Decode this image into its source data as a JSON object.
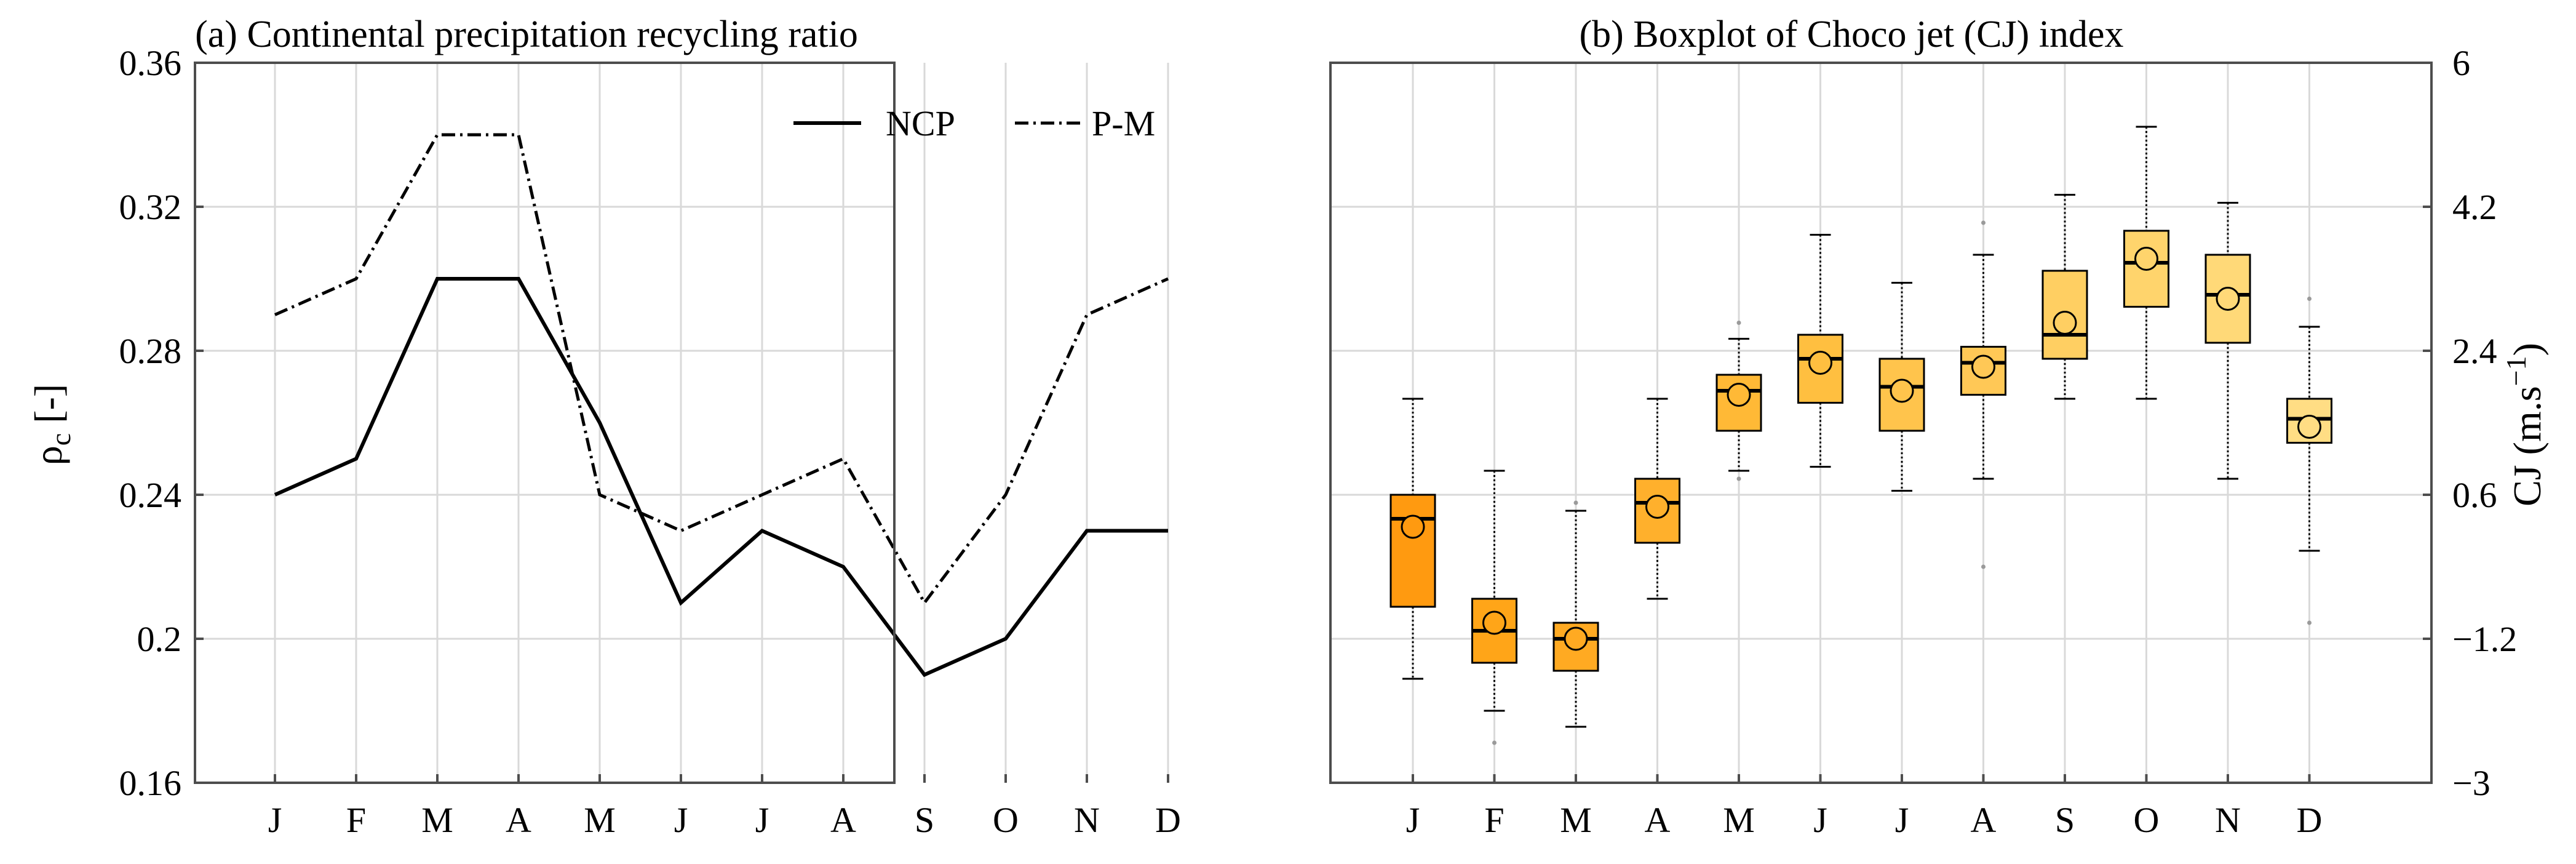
{
  "chart_data": [
    {
      "type": "line",
      "title": "(a) Continental precipitation recycling ratio",
      "ylabel_main": "ρ",
      "ylabel_sub": "c",
      "ylabel_tail": " [-]",
      "xlabel": "",
      "categories": [
        "J",
        "F",
        "M",
        "A",
        "M",
        "J",
        "J",
        "A",
        "S",
        "O",
        "N",
        "D"
      ],
      "ylim": [
        0.16,
        0.36
      ],
      "yticks": [
        0.16,
        0.2,
        0.24,
        0.28,
        0.32,
        0.36
      ],
      "ytick_labels": [
        "0.16",
        "0.2",
        "0.24",
        "0.28",
        "0.32",
        "0.36"
      ],
      "grid": true,
      "legend": "top-right",
      "series": [
        {
          "name": "NCP",
          "style": "solid",
          "values": [
            0.24,
            0.25,
            0.3,
            0.3,
            0.26,
            0.21,
            0.23,
            0.22,
            0.19,
            0.2,
            0.23,
            0.23
          ]
        },
        {
          "name": "P-M",
          "style": "dashdot",
          "values": [
            0.29,
            0.3,
            0.34,
            0.34,
            0.24,
            0.23,
            0.24,
            0.25,
            0.21,
            0.24,
            0.29,
            0.3
          ]
        }
      ]
    },
    {
      "type": "boxplot",
      "title": "(b) Boxplot of Choco jet (CJ) index",
      "ylabel_main": "CJ (m.s",
      "ylabel_sup": "−1",
      "ylabel_tail": ")",
      "categories": [
        "J",
        "F",
        "M",
        "A",
        "M",
        "J",
        "J",
        "A",
        "S",
        "O",
        "N",
        "D"
      ],
      "ylim": [
        -3,
        6
      ],
      "yticks": [
        -3,
        -1.2,
        0.6,
        2.4,
        4.2,
        6
      ],
      "ytick_labels": [
        "−3",
        "−1.2",
        "0.6",
        "2.4",
        "4.2",
        "6"
      ],
      "yaxis_side": "right",
      "grid": true,
      "boxes": [
        {
          "whisker_low": -1.7,
          "q1": -0.8,
          "median": 0.3,
          "q3": 0.6,
          "whisker_high": 1.8,
          "mean": 0.2,
          "outliers": []
        },
        {
          "whisker_low": -2.1,
          "q1": -1.5,
          "median": -1.1,
          "q3": -0.7,
          "whisker_high": 0.9,
          "mean": -1.0,
          "outliers": [
            -2.5
          ]
        },
        {
          "whisker_low": -2.3,
          "q1": -1.6,
          "median": -1.2,
          "q3": -1.0,
          "whisker_high": 0.4,
          "mean": -1.2,
          "outliers": [
            0.5
          ]
        },
        {
          "whisker_low": -0.7,
          "q1": 0.0,
          "median": 0.5,
          "q3": 0.8,
          "whisker_high": 1.8,
          "mean": 0.45,
          "outliers": []
        },
        {
          "whisker_low": 0.9,
          "q1": 1.4,
          "median": 1.9,
          "q3": 2.1,
          "whisker_high": 2.55,
          "mean": 1.85,
          "outliers": [
            0.8,
            2.75
          ]
        },
        {
          "whisker_low": 0.95,
          "q1": 1.75,
          "median": 2.3,
          "q3": 2.6,
          "whisker_high": 3.85,
          "mean": 2.25,
          "outliers": []
        },
        {
          "whisker_low": 0.65,
          "q1": 1.4,
          "median": 1.95,
          "q3": 2.3,
          "whisker_high": 3.25,
          "mean": 1.9,
          "outliers": []
        },
        {
          "whisker_low": 0.8,
          "q1": 1.85,
          "median": 2.25,
          "q3": 2.45,
          "whisker_high": 3.6,
          "mean": 2.2,
          "outliers": [
            -0.3,
            4.0
          ]
        },
        {
          "whisker_low": 1.8,
          "q1": 2.3,
          "median": 2.6,
          "q3": 3.4,
          "whisker_high": 4.35,
          "mean": 2.75,
          "outliers": []
        },
        {
          "whisker_low": 1.8,
          "q1": 2.95,
          "median": 3.5,
          "q3": 3.9,
          "whisker_high": 5.2,
          "mean": 3.55,
          "outliers": []
        },
        {
          "whisker_low": 0.8,
          "q1": 2.5,
          "median": 3.1,
          "q3": 3.6,
          "whisker_high": 4.25,
          "mean": 3.05,
          "outliers": []
        },
        {
          "whisker_low": -0.1,
          "q1": 1.25,
          "median": 1.55,
          "q3": 1.8,
          "whisker_high": 2.7,
          "mean": 1.45,
          "outliers": [
            -1.0,
            3.05
          ]
        }
      ],
      "box_colors": [
        "#ff9a10",
        "#ffa518",
        "#ffaa22",
        "#ffb02c",
        "#ffb936",
        "#ffbf40",
        "#ffc44c",
        "#ffc856",
        "#ffcf62",
        "#ffd46c",
        "#ffd978",
        "#ffdd84"
      ]
    }
  ]
}
